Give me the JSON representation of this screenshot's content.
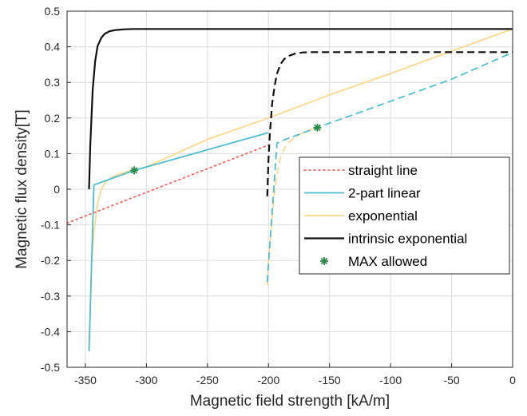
{
  "chart_data": {
    "type": "line",
    "title": "",
    "xlabel": "Magnetic field strength [kA/m]",
    "ylabel": "Magnetic flux density[T]",
    "xlim": [
      -365,
      0
    ],
    "ylim": [
      -0.5,
      0.5
    ],
    "xticks": [
      -350,
      -300,
      -250,
      -200,
      -150,
      -100,
      -50,
      0
    ],
    "yticks": [
      -0.5,
      -0.4,
      -0.3,
      -0.2,
      -0.1,
      0,
      0.1,
      0.2,
      0.3,
      0.4,
      0.5
    ],
    "xtick_labels": [
      "-350",
      "-300",
      "-250",
      "-200",
      "-150",
      "-100",
      "-50",
      "0"
    ],
    "ytick_labels": [
      "-0.5",
      "-0.4",
      "-0.3",
      "-0.2",
      "-0.1",
      "0",
      "0.1",
      "0.2",
      "0.3",
      "0.4",
      "0.5"
    ],
    "grid": true,
    "legend_position": "right",
    "legend": [
      {
        "label": "straight line",
        "color": "#ee6a6a",
        "style": "dotted"
      },
      {
        "label": "2-part linear",
        "color": "#4dbecc",
        "style": "solid"
      },
      {
        "label": "exponential",
        "color": "#f9d98c",
        "style": "solid"
      },
      {
        "label": "intrinsic exponential",
        "color": "#111111",
        "style": "solid"
      },
      {
        "label": "MAX allowed",
        "color": "#2a8a4a",
        "style": "marker"
      }
    ],
    "series": [
      {
        "name": "straight line",
        "color": "#ee6a6a",
        "dash": "dotted",
        "x": [
          -365,
          -200
        ],
        "y": [
          -0.095,
          0.124
        ]
      },
      {
        "name": "2-part linear",
        "color": "#4dbecc",
        "dash": "solid",
        "x": [
          -347,
          -343,
          -310,
          -255,
          -200
        ],
        "y": [
          -0.455,
          0.012,
          0.053,
          0.106,
          0.159
        ]
      },
      {
        "name": "2-part linear",
        "color": "#4dbecc",
        "dash": "dashed",
        "x": [
          -201,
          -193,
          -190,
          -160,
          -100,
          -50,
          0
        ],
        "y": [
          -0.26,
          0.13,
          0.135,
          0.173,
          0.247,
          0.309,
          0.384
        ]
      },
      {
        "name": "exponential",
        "color": "#f9d98c",
        "dash": "solid",
        "x": [
          -347,
          -346,
          -345,
          -343,
          -340,
          -337,
          -333,
          -328,
          -323,
          -316,
          -310,
          -300,
          -250,
          -200,
          -150,
          -100,
          -50,
          0
        ],
        "y": [
          -0.45,
          -0.35,
          -0.21,
          -0.12,
          -0.04,
          0.0,
          0.022,
          0.034,
          0.042,
          0.049,
          0.053,
          0.063,
          0.14,
          0.2,
          0.265,
          0.325,
          0.388,
          0.45
        ]
      },
      {
        "name": "exponential",
        "color": "#f9d98c",
        "dash": "dashed",
        "x": [
          -201,
          -200,
          -198,
          -196,
          -194,
          -192,
          -190,
          -187,
          -183,
          -178,
          -172,
          -165,
          -160
        ],
        "y": [
          -0.27,
          -0.2,
          -0.12,
          -0.04,
          0.02,
          0.06,
          0.09,
          0.114,
          0.133,
          0.147,
          0.158,
          0.168,
          0.173
        ]
      },
      {
        "name": "intrinsic exponential",
        "color": "#111111",
        "dash": "solid",
        "x": [
          -347,
          -346,
          -344,
          -342,
          -340,
          -337,
          -334,
          -330,
          -325,
          -318,
          -310,
          -300,
          -250,
          0
        ],
        "y": [
          0.0,
          0.12,
          0.28,
          0.36,
          0.402,
          0.425,
          0.437,
          0.444,
          0.447,
          0.449,
          0.45,
          0.45,
          0.45,
          0.45
        ]
      },
      {
        "name": "intrinsic exponential",
        "color": "#111111",
        "dash": "dashed",
        "x": [
          -201,
          -200,
          -199,
          -197,
          -195,
          -193,
          -190,
          -187,
          -183,
          -178,
          -172,
          -165,
          -155,
          -100,
          -50,
          0
        ],
        "y": [
          -0.02,
          0.08,
          0.15,
          0.24,
          0.29,
          0.325,
          0.352,
          0.366,
          0.375,
          0.381,
          0.384,
          0.385,
          0.385,
          0.385,
          0.385,
          0.385
        ]
      }
    ],
    "markers": [
      {
        "x": -310,
        "y": 0.053,
        "color": "#2a8a4a",
        "label": "MAX allowed"
      },
      {
        "x": -160,
        "y": 0.173,
        "color": "#2a8a4a",
        "label": "MAX allowed"
      }
    ]
  }
}
